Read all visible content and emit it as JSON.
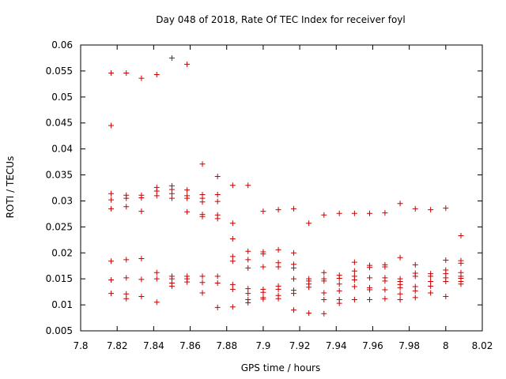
{
  "chart_data": {
    "type": "scatter",
    "title": "Day 048 of 2018, Rate Of TEC Index for receiver foyl",
    "xlabel": "GPS time / hours",
    "ylabel": "ROTI / TECUs",
    "xlim": [
      7.8,
      8.02
    ],
    "ylim": [
      0.005,
      0.06
    ],
    "xticks": [
      "7.8",
      "7.82",
      "7.84",
      "7.86",
      "7.88",
      "7.9",
      "7.92",
      "7.94",
      "7.96",
      "7.98",
      "8",
      "8.02"
    ],
    "yticks": [
      "0.005",
      "0.01",
      "0.015",
      "0.02",
      "0.025",
      "0.03",
      "0.035",
      "0.04",
      "0.045",
      "0.05",
      "0.055",
      "0.06"
    ],
    "grid": false,
    "marker": "+",
    "color": "#cc0000",
    "points": [
      [
        7.8167,
        0.0546
      ],
      [
        7.8167,
        0.0445
      ],
      [
        7.8167,
        0.0314
      ],
      [
        7.8167,
        0.0302
      ],
      [
        7.8167,
        0.0285
      ],
      [
        7.8167,
        0.0184
      ],
      [
        7.8167,
        0.0148
      ],
      [
        7.8167,
        0.0122
      ],
      [
        7.825,
        0.0546
      ],
      [
        7.825,
        0.0311
      ],
      [
        7.825,
        0.0305
      ],
      [
        7.825,
        0.0289
      ],
      [
        7.825,
        0.0187
      ],
      [
        7.825,
        0.0152
      ],
      [
        7.825,
        0.0121
      ],
      [
        7.825,
        0.0112
      ],
      [
        7.8333,
        0.0536
      ],
      [
        7.8333,
        0.0311
      ],
      [
        7.8333,
        0.0306
      ],
      [
        7.8333,
        0.028
      ],
      [
        7.8333,
        0.0189
      ],
      [
        7.8333,
        0.0149
      ],
      [
        7.8333,
        0.0116
      ],
      [
        7.8417,
        0.0543
      ],
      [
        7.8417,
        0.0326
      ],
      [
        7.8417,
        0.0319
      ],
      [
        7.8417,
        0.031
      ],
      [
        7.8417,
        0.0162
      ],
      [
        7.8417,
        0.015
      ],
      [
        7.8417,
        0.0105
      ],
      [
        7.85,
        0.0575
      ],
      [
        7.85,
        0.0329
      ],
      [
        7.85,
        0.0322
      ],
      [
        7.85,
        0.0314
      ],
      [
        7.85,
        0.0305
      ],
      [
        7.85,
        0.0155
      ],
      [
        7.85,
        0.015
      ],
      [
        7.85,
        0.0142
      ],
      [
        7.85,
        0.0136
      ],
      [
        7.8583,
        0.0563
      ],
      [
        7.8583,
        0.0321
      ],
      [
        7.8583,
        0.031
      ],
      [
        7.8583,
        0.0305
      ],
      [
        7.8583,
        0.0279
      ],
      [
        7.8583,
        0.0155
      ],
      [
        7.8583,
        0.015
      ],
      [
        7.8583,
        0.0144
      ],
      [
        7.8667,
        0.0371
      ],
      [
        7.8667,
        0.0312
      ],
      [
        7.8667,
        0.0305
      ],
      [
        7.8667,
        0.0298
      ],
      [
        7.8667,
        0.0274
      ],
      [
        7.8667,
        0.027
      ],
      [
        7.8667,
        0.0155
      ],
      [
        7.8667,
        0.0143
      ],
      [
        7.8667,
        0.0123
      ],
      [
        7.875,
        0.0347
      ],
      [
        7.875,
        0.0312
      ],
      [
        7.875,
        0.0299
      ],
      [
        7.875,
        0.0273
      ],
      [
        7.875,
        0.0266
      ],
      [
        7.875,
        0.0155
      ],
      [
        7.875,
        0.0142
      ],
      [
        7.875,
        0.0095
      ],
      [
        7.8833,
        0.033
      ],
      [
        7.8833,
        0.0257
      ],
      [
        7.8833,
        0.0227
      ],
      [
        7.8833,
        0.0193
      ],
      [
        7.8833,
        0.0184
      ],
      [
        7.8833,
        0.0139
      ],
      [
        7.8833,
        0.013
      ],
      [
        7.8833,
        0.0096
      ],
      [
        7.8917,
        0.033
      ],
      [
        7.8917,
        0.0203
      ],
      [
        7.8917,
        0.0187
      ],
      [
        7.8917,
        0.0171
      ],
      [
        7.8917,
        0.0131
      ],
      [
        7.8917,
        0.0122
      ],
      [
        7.8917,
        0.011
      ],
      [
        7.8917,
        0.0104
      ],
      [
        7.9,
        0.028
      ],
      [
        7.9,
        0.0202
      ],
      [
        7.9,
        0.0198
      ],
      [
        7.9,
        0.0173
      ],
      [
        7.9,
        0.013
      ],
      [
        7.9,
        0.0124
      ],
      [
        7.9,
        0.0114
      ],
      [
        7.9,
        0.0111
      ],
      [
        7.9083,
        0.0283
      ],
      [
        7.9083,
        0.0206
      ],
      [
        7.9083,
        0.0181
      ],
      [
        7.9083,
        0.0173
      ],
      [
        7.9083,
        0.0136
      ],
      [
        7.9083,
        0.013
      ],
      [
        7.9083,
        0.0118
      ],
      [
        7.9083,
        0.0112
      ],
      [
        7.9167,
        0.0285
      ],
      [
        7.9167,
        0.02
      ],
      [
        7.9167,
        0.0178
      ],
      [
        7.9167,
        0.0171
      ],
      [
        7.9167,
        0.015
      ],
      [
        7.9167,
        0.0128
      ],
      [
        7.9167,
        0.0122
      ],
      [
        7.9167,
        0.009
      ],
      [
        7.925,
        0.0257
      ],
      [
        7.925,
        0.015
      ],
      [
        7.925,
        0.0146
      ],
      [
        7.925,
        0.014
      ],
      [
        7.925,
        0.0134
      ],
      [
        7.925,
        0.0084
      ],
      [
        7.9333,
        0.0273
      ],
      [
        7.9333,
        0.0162
      ],
      [
        7.9333,
        0.015
      ],
      [
        7.9333,
        0.0146
      ],
      [
        7.9333,
        0.0123
      ],
      [
        7.9333,
        0.011
      ],
      [
        7.9333,
        0.0083
      ],
      [
        7.9417,
        0.0276
      ],
      [
        7.9417,
        0.0157
      ],
      [
        7.9417,
        0.0151
      ],
      [
        7.9417,
        0.014
      ],
      [
        7.9417,
        0.0127
      ],
      [
        7.9417,
        0.011
      ],
      [
        7.9417,
        0.0103
      ],
      [
        7.95,
        0.0276
      ],
      [
        7.95,
        0.0182
      ],
      [
        7.95,
        0.0165
      ],
      [
        7.95,
        0.0155
      ],
      [
        7.95,
        0.0148
      ],
      [
        7.95,
        0.0135
      ],
      [
        7.95,
        0.011
      ],
      [
        7.9583,
        0.0276
      ],
      [
        7.9583,
        0.0176
      ],
      [
        7.9583,
        0.0172
      ],
      [
        7.9583,
        0.0152
      ],
      [
        7.9583,
        0.0133
      ],
      [
        7.9583,
        0.0129
      ],
      [
        7.9583,
        0.011
      ],
      [
        7.9667,
        0.0277
      ],
      [
        7.9667,
        0.0177
      ],
      [
        7.9667,
        0.0173
      ],
      [
        7.9667,
        0.0152
      ],
      [
        7.9667,
        0.0146
      ],
      [
        7.9667,
        0.0129
      ],
      [
        7.9667,
        0.0112
      ],
      [
        7.975,
        0.0295
      ],
      [
        7.975,
        0.0191
      ],
      [
        7.975,
        0.015
      ],
      [
        7.975,
        0.0145
      ],
      [
        7.975,
        0.0139
      ],
      [
        7.975,
        0.0133
      ],
      [
        7.975,
        0.0121
      ],
      [
        7.975,
        0.011
      ],
      [
        7.9833,
        0.0285
      ],
      [
        7.9833,
        0.0177
      ],
      [
        7.9833,
        0.0161
      ],
      [
        7.9833,
        0.0155
      ],
      [
        7.9833,
        0.0135
      ],
      [
        7.9833,
        0.0127
      ],
      [
        7.9833,
        0.0114
      ],
      [
        7.9917,
        0.0283
      ],
      [
        7.9917,
        0.016
      ],
      [
        7.9917,
        0.0155
      ],
      [
        7.9917,
        0.0145
      ],
      [
        7.9917,
        0.0136
      ],
      [
        7.9917,
        0.0123
      ],
      [
        8.0,
        0.0286
      ],
      [
        8.0,
        0.0186
      ],
      [
        8.0,
        0.0167
      ],
      [
        8.0,
        0.016
      ],
      [
        8.0,
        0.0152
      ],
      [
        8.0,
        0.0145
      ],
      [
        8.0,
        0.0116
      ],
      [
        8.0083,
        0.0233
      ],
      [
        8.0083,
        0.0185
      ],
      [
        8.0083,
        0.018
      ],
      [
        8.0083,
        0.0162
      ],
      [
        8.0083,
        0.0155
      ],
      [
        8.0083,
        0.0151
      ],
      [
        8.0083,
        0.0145
      ],
      [
        8.0083,
        0.014
      ]
    ]
  }
}
